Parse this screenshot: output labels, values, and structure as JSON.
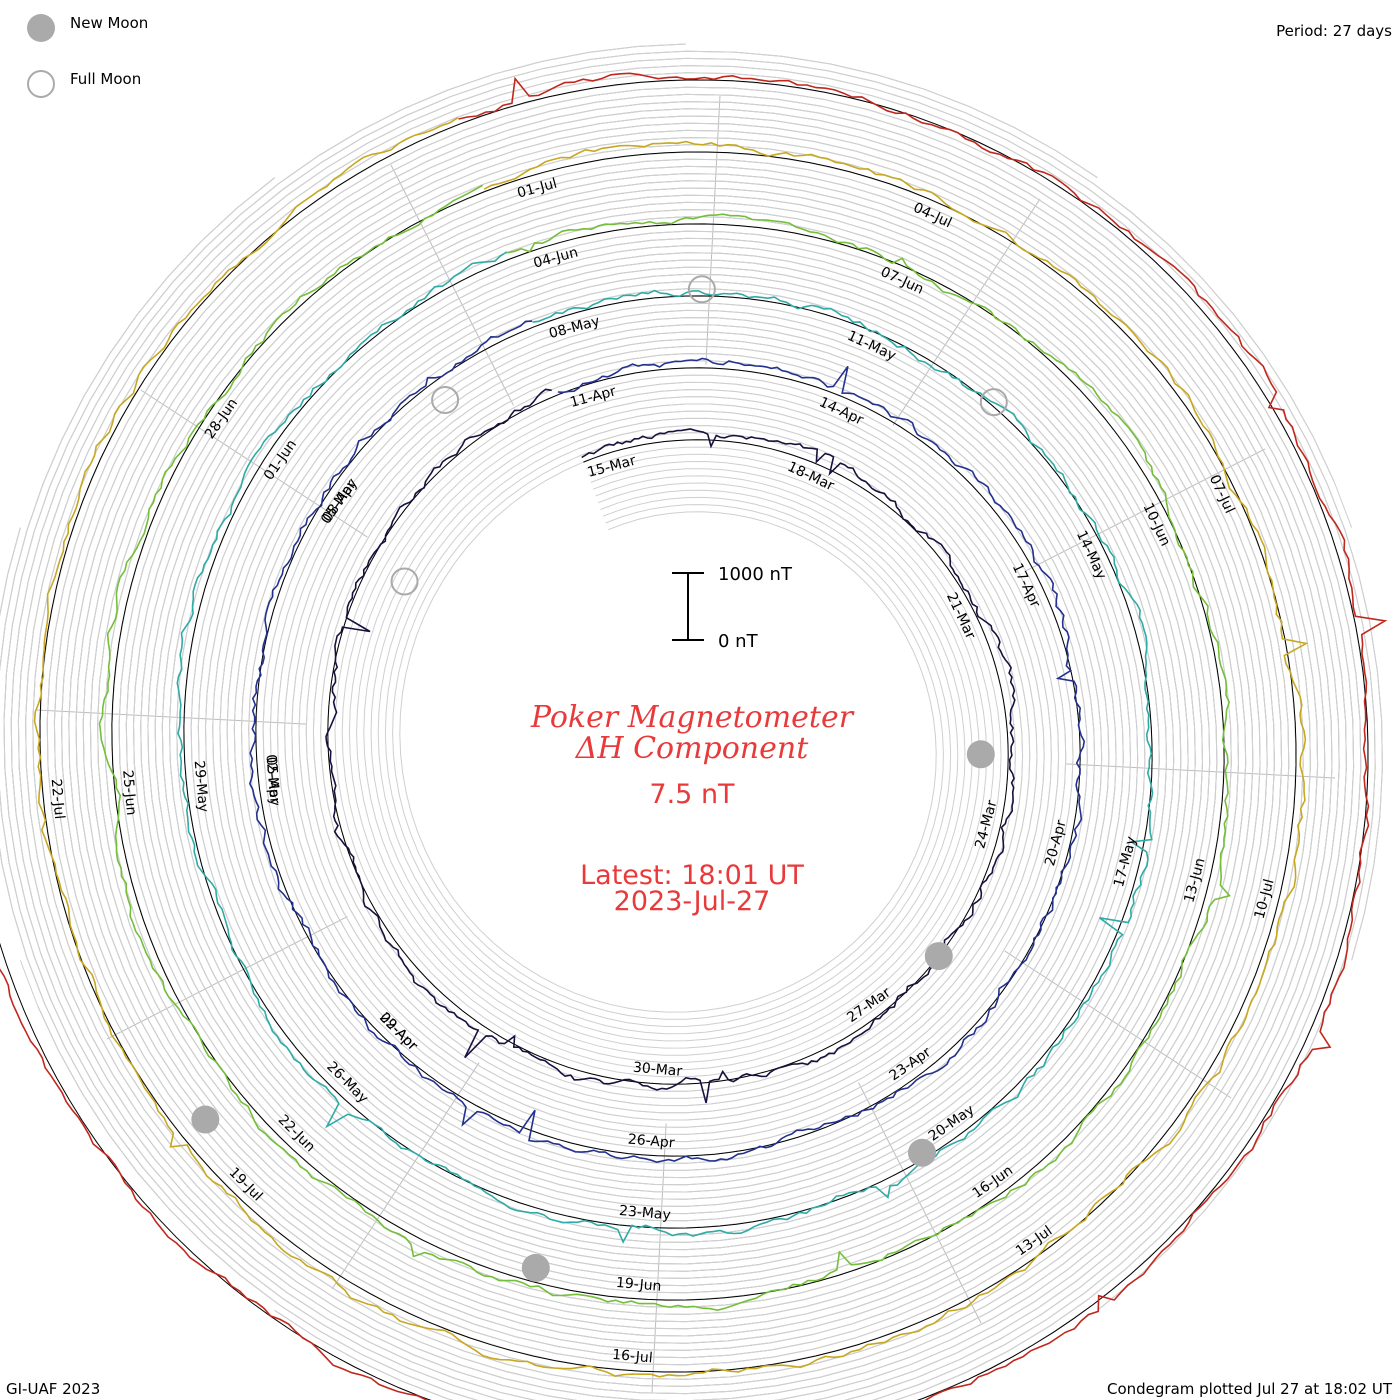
{
  "legend": {
    "new_moon_label": "New Moon",
    "full_moon_label": "Full Moon",
    "new_moon_color": "#aaaaaa",
    "full_moon_color": "#aaaaaa"
  },
  "period_label": "Period: 27 days",
  "center": {
    "title_line1": "Poker Magnetometer",
    "title_line2": "ΔH Component",
    "value": "7.5 nT",
    "latest_line1": "Latest: 18:01 UT",
    "latest_line2": "2023-Jul-27",
    "text_color": "#e83a3a"
  },
  "scale_bar": {
    "top_label": "1000 nT",
    "bottom_label": "0 nT"
  },
  "footer_left": "GI-UAF 2023",
  "footer_right": "Condegram plotted Jul 27 at 18:02 UT",
  "chart_data": {
    "type": "condegram",
    "title": "Poker Magnetometer ΔH Component",
    "period_days": 27,
    "value_label": "7.5 nT",
    "scale": {
      "min": 0,
      "max": 1000,
      "unit": "nT"
    },
    "latest": "2023-Jul-27 18:01 UT",
    "rotations": [
      {
        "color": "#1a1040",
        "labels": [
          {
            "text": "15-Mar",
            "angle": 5
          },
          {
            "text": "18-Mar",
            "angle": 45
          },
          {
            "text": "21-Mar",
            "angle": 85
          },
          {
            "text": "24-Mar",
            "angle": 125
          },
          {
            "text": "27-Mar",
            "angle": 165
          },
          {
            "text": "30-Mar",
            "angle": 205
          }
        ]
      },
      {
        "color": "#23318f",
        "labels": [
          {
            "text": "02-Apr",
            "angle": 245
          },
          {
            "text": "05-Apr",
            "angle": 285
          },
          {
            "text": "08-Apr",
            "angle": 325
          },
          {
            "text": "11-Apr",
            "angle": 5
          },
          {
            "text": "14-Apr",
            "angle": 45
          },
          {
            "text": "17-Apr",
            "angle": 85
          },
          {
            "text": "20-Apr",
            "angle": 125
          },
          {
            "text": "23-Apr",
            "angle": 165
          },
          {
            "text": "26-Apr",
            "angle": 205
          },
          {
            "text": "29-Apr",
            "angle": 245
          },
          {
            "text": "02-May",
            "angle": 285
          },
          {
            "text": "05-May",
            "angle": 325
          }
        ]
      },
      {
        "color": "#2eaba6",
        "labels": [
          {
            "text": "08-May",
            "angle": 5
          },
          {
            "text": "11-May",
            "angle": 45
          },
          {
            "text": "14-May",
            "angle": 85
          },
          {
            "text": "17-May",
            "angle": 125
          },
          {
            "text": "20-May",
            "angle": 165
          },
          {
            "text": "23-May",
            "angle": 205
          },
          {
            "text": "26-May",
            "angle": 245
          },
          {
            "text": "29-May",
            "angle": 285
          },
          {
            "text": "01-Jun",
            "angle": 325
          }
        ]
      },
      {
        "color": "#74bf3a",
        "labels": [
          {
            "text": "04-Jun",
            "angle": 5
          },
          {
            "text": "07-Jun",
            "angle": 45
          },
          {
            "text": "10-Jun",
            "angle": 85
          },
          {
            "text": "13-Jun",
            "angle": 125
          },
          {
            "text": "16-Jun",
            "angle": 165
          },
          {
            "text": "19-Jun",
            "angle": 205
          },
          {
            "text": "22-Jun",
            "angle": 245
          },
          {
            "text": "25-Jun",
            "angle": 285
          },
          {
            "text": "28-Jun",
            "angle": 325
          }
        ]
      },
      {
        "color": "#c8a820",
        "labels": [
          {
            "text": "01-Jul",
            "angle": 5
          },
          {
            "text": "04-Jul",
            "angle": 45
          },
          {
            "text": "07-Jul",
            "angle": 85
          },
          {
            "text": "10-Jul",
            "angle": 125
          },
          {
            "text": "13-Jul",
            "angle": 165
          },
          {
            "text": "16-Jul",
            "angle": 205
          },
          {
            "text": "19-Jul",
            "angle": 245
          },
          {
            "text": "22-Jul",
            "angle": 285
          }
        ]
      },
      {
        "color": "#c0281e",
        "labels": []
      }
    ],
    "new_moons": [
      {
        "angle": 92,
        "radius": 295
      },
      {
        "angle": 130,
        "radius": 330
      },
      {
        "angle": 150,
        "radius": 472
      },
      {
        "angle": 196,
        "radius": 545
      },
      {
        "angle": 232,
        "radius": 610
      }
    ],
    "full_moons": [
      {
        "angle": 300,
        "radius": 325
      },
      {
        "angle": 325,
        "radius": 420
      },
      {
        "angle": 2,
        "radius": 455
      },
      {
        "angle": 42,
        "radius": 460
      }
    ]
  }
}
